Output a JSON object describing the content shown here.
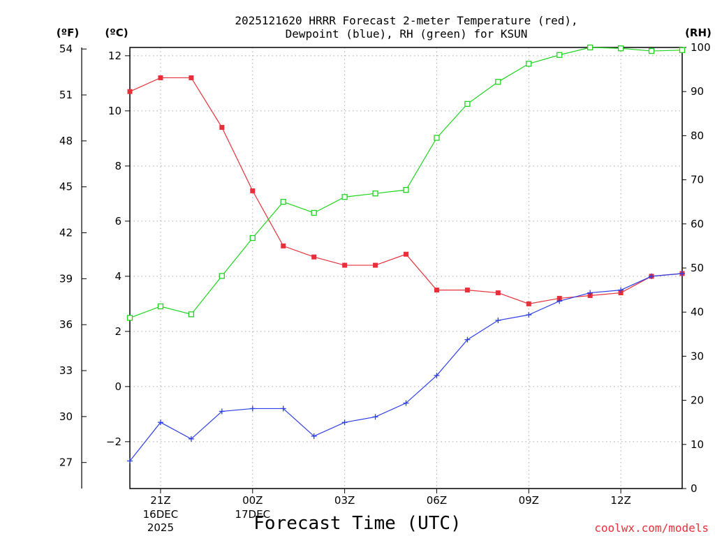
{
  "chart_data": {
    "type": "line",
    "title_line1": "2025121620 HRRR Forecast 2-meter Temperature (red),",
    "title_line2": "Dewpoint (blue), RH (green) for KSUN",
    "xlabel": "Forecast Time (UTC)",
    "credit": "coolwx.com/models",
    "units": {
      "fahrenheit": "(ºF)",
      "celsius": "(ºC)",
      "rh": "(RH)"
    },
    "x": [
      20,
      21,
      22,
      23,
      24,
      25,
      26,
      27,
      28,
      29,
      30,
      31,
      32,
      33,
      34,
      35,
      36,
      37,
      38
    ],
    "xlim": [
      20,
      38
    ],
    "x_ticks": [
      {
        "x": 21,
        "label": "21Z",
        "sub1": "16DEC",
        "sub2": "2025"
      },
      {
        "x": 24,
        "label": "00Z",
        "sub1": "17DEC",
        "sub2": ""
      },
      {
        "x": 27,
        "label": "03Z",
        "sub1": "",
        "sub2": ""
      },
      {
        "x": 30,
        "label": "06Z",
        "sub1": "",
        "sub2": ""
      },
      {
        "x": 33,
        "label": "09Z",
        "sub1": "",
        "sub2": ""
      },
      {
        "x": 36,
        "label": "12Z",
        "sub1": "",
        "sub2": ""
      }
    ],
    "celsius_ylim": [
      -3.7,
      12.3
    ],
    "celsius_ticks": [
      {
        "v": -2,
        "label": "−2"
      },
      {
        "v": 0,
        "label": "0"
      },
      {
        "v": 2,
        "label": "2"
      },
      {
        "v": 4,
        "label": "4"
      },
      {
        "v": 6,
        "label": "6"
      },
      {
        "v": 8,
        "label": "8"
      },
      {
        "v": 10,
        "label": "10"
      },
      {
        "v": 12,
        "label": "12"
      }
    ],
    "fahrenheit_ylim": [
      25.3,
      54.1
    ],
    "fahrenheit_ticks": [
      "27",
      "30",
      "33",
      "36",
      "39",
      "42",
      "45",
      "48",
      "51",
      "54"
    ],
    "rh_ylim": [
      0,
      100
    ],
    "rh_ticks": [
      "0",
      "10",
      "20",
      "30",
      "40",
      "50",
      "60",
      "70",
      "80",
      "90",
      "100"
    ],
    "grid": true,
    "series": [
      {
        "name": "Temperature",
        "axis": "celsius",
        "color": "#e8303a",
        "marker": "filled-square",
        "values": [
          10.7,
          11.2,
          11.2,
          9.4,
          7.1,
          5.1,
          4.7,
          4.4,
          4.4,
          4.8,
          3.5,
          3.5,
          3.4,
          3.0,
          3.2,
          3.3,
          3.4,
          4.0,
          4.1
        ]
      },
      {
        "name": "Dewpoint",
        "axis": "celsius",
        "color": "#2c3ee8",
        "marker": "plus",
        "values": [
          -2.7,
          -1.3,
          -1.9,
          -0.9,
          -0.8,
          -0.8,
          -1.8,
          -1.3,
          -1.1,
          -0.6,
          0.4,
          1.7,
          2.4,
          2.6,
          3.1,
          3.4,
          3.5,
          4.0,
          4.1
        ]
      },
      {
        "name": "RH",
        "axis": "rh",
        "color": "#1fd41f",
        "marker": "open-square",
        "values": [
          38.7,
          41.3,
          39.5,
          48.2,
          56.8,
          65.0,
          62.5,
          66.1,
          66.9,
          67.7,
          79.5,
          87.2,
          92.2,
          96.3,
          98.3,
          100,
          99.8,
          99.2,
          99.4
        ]
      }
    ]
  }
}
